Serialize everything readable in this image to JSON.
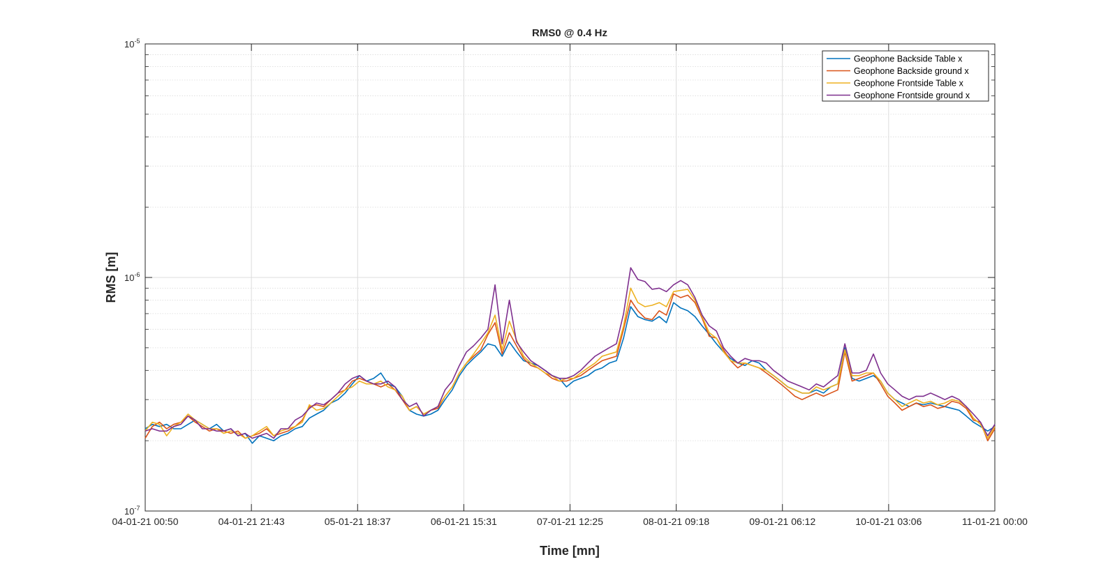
{
  "chart_data": {
    "type": "line",
    "title": "RMS0 @ 0.4 Hz",
    "xlabel": "Time [mn]",
    "ylabel": "RMS [m]",
    "yscale": "log",
    "ylim": [
      1e-07,
      1e-05
    ],
    "xlim": [
      "04-01-21 00:50",
      "11-01-21 00:00"
    ],
    "x_ticks": [
      "04-01-21 00:50",
      "04-01-21 21:43",
      "05-01-21 18:37",
      "06-01-21 15:31",
      "07-01-21 12:25",
      "08-01-21 09:18",
      "09-01-21 06:12",
      "10-01-21 03:06",
      "11-01-21 00:00"
    ],
    "y_ticks": [
      {
        "base": "10",
        "exp": "-7"
      },
      {
        "base": "10",
        "exp": "-6"
      },
      {
        "base": "10",
        "exp": "-5"
      }
    ],
    "grid": true,
    "minor_grid": true,
    "legend_position": "top-right",
    "series": [
      {
        "name": "Geophone Backside Table x",
        "color": "#0072BD",
        "values": [
          2.25e-07,
          2.35e-07,
          2.3e-07,
          2.35e-07,
          2.25e-07,
          2.25e-07,
          2.35e-07,
          2.45e-07,
          2.35e-07,
          2.25e-07,
          2.35e-07,
          2.2e-07,
          2.25e-07,
          2.1e-07,
          2.15e-07,
          1.95e-07,
          2.1e-07,
          2.05e-07,
          2e-07,
          2.1e-07,
          2.15e-07,
          2.25e-07,
          2.3e-07,
          2.5e-07,
          2.6e-07,
          2.7e-07,
          2.9e-07,
          3e-07,
          3.2e-07,
          3.5e-07,
          3.8e-07,
          3.6e-07,
          3.7e-07,
          3.9e-07,
          3.5e-07,
          3.4e-07,
          3.1e-07,
          2.7e-07,
          2.6e-07,
          2.55e-07,
          2.6e-07,
          2.7e-07,
          3e-07,
          3.3e-07,
          3.8e-07,
          4.2e-07,
          4.5e-07,
          4.8e-07,
          5.2e-07,
          5.1e-07,
          4.6e-07,
          5.3e-07,
          4.8e-07,
          4.4e-07,
          4.3e-07,
          4.2e-07,
          4e-07,
          3.8e-07,
          3.7e-07,
          3.4e-07,
          3.6e-07,
          3.7e-07,
          3.8e-07,
          4e-07,
          4.1e-07,
          4.3e-07,
          4.4e-07,
          5.5e-07,
          7.5e-07,
          6.8e-07,
          6.6e-07,
          6.5e-07,
          6.8e-07,
          6.4e-07,
          7.8e-07,
          7.4e-07,
          7.2e-07,
          6.8e-07,
          6.2e-07,
          5.7e-07,
          5.2e-07,
          4.8e-07,
          4.5e-07,
          4.3e-07,
          4.2e-07,
          4.4e-07,
          4.3e-07,
          4e-07,
          3.8e-07,
          3.6e-07,
          3.4e-07,
          3.3e-07,
          3.2e-07,
          3.2e-07,
          3.3e-07,
          3.2e-07,
          3.4e-07,
          3.5e-07,
          5e-07,
          3.7e-07,
          3.6e-07,
          3.7e-07,
          3.8e-07,
          3.6e-07,
          3.2e-07,
          3e-07,
          2.9e-07,
          2.8e-07,
          2.9e-07,
          2.85e-07,
          2.9e-07,
          2.85e-07,
          2.8e-07,
          2.75e-07,
          2.7e-07,
          2.55e-07,
          2.4e-07,
          2.3e-07,
          2.2e-07,
          2.3e-07
        ]
      },
      {
        "name": "Geophone Backside ground x",
        "color": "#D95319",
        "values": [
          2.05e-07,
          2.3e-07,
          2.4e-07,
          2.25e-07,
          2.35e-07,
          2.4e-07,
          2.55e-07,
          2.4e-07,
          2.3e-07,
          2.2e-07,
          2.25e-07,
          2.2e-07,
          2.15e-07,
          2.2e-07,
          2.05e-07,
          2.1e-07,
          2.15e-07,
          2.25e-07,
          2.1e-07,
          2.15e-07,
          2.2e-07,
          2.3e-07,
          2.45e-07,
          2.8e-07,
          2.85e-07,
          2.8e-07,
          3e-07,
          3.2e-07,
          3.3e-07,
          3.6e-07,
          3.7e-07,
          3.6e-07,
          3.5e-07,
          3.4e-07,
          3.5e-07,
          3.3e-07,
          3e-07,
          2.7e-07,
          2.8e-07,
          2.6e-07,
          2.7e-07,
          2.75e-07,
          3.1e-07,
          3.4e-07,
          3.9e-07,
          4.3e-07,
          4.6e-07,
          4.9e-07,
          5.7e-07,
          6.4e-07,
          4.7e-07,
          5.8e-07,
          5.1e-07,
          4.5e-07,
          4.2e-07,
          4.1e-07,
          3.9e-07,
          3.7e-07,
          3.6e-07,
          3.6e-07,
          3.7e-07,
          3.8e-07,
          4e-07,
          4.2e-07,
          4.4e-07,
          4.5e-07,
          4.6e-07,
          6e-07,
          8e-07,
          7.2e-07,
          6.7e-07,
          6.6e-07,
          7.2e-07,
          6.9e-07,
          8.5e-07,
          8.2e-07,
          8.4e-07,
          7.8e-07,
          6.7e-07,
          5.6e-07,
          5.5e-07,
          4.9e-07,
          4.4e-07,
          4.1e-07,
          4.3e-07,
          4.2e-07,
          4.1e-07,
          3.9e-07,
          3.7e-07,
          3.5e-07,
          3.3e-07,
          3.1e-07,
          3e-07,
          3.1e-07,
          3.2e-07,
          3.1e-07,
          3.2e-07,
          3.3e-07,
          4.8e-07,
          3.6e-07,
          3.7e-07,
          3.8e-07,
          3.9e-07,
          3.5e-07,
          3.1e-07,
          2.9e-07,
          2.7e-07,
          2.8e-07,
          2.9e-07,
          2.8e-07,
          2.85e-07,
          2.75e-07,
          2.8e-07,
          2.95e-07,
          2.9e-07,
          2.75e-07,
          2.45e-07,
          2.4e-07,
          2e-07,
          2.25e-07
        ]
      },
      {
        "name": "Geophone Frontside Table x",
        "color": "#EDB120",
        "values": [
          2.2e-07,
          2.4e-07,
          2.35e-07,
          2.1e-07,
          2.3e-07,
          2.4e-07,
          2.6e-07,
          2.45e-07,
          2.35e-07,
          2.25e-07,
          2.25e-07,
          2.15e-07,
          2.2e-07,
          2.15e-07,
          2.05e-07,
          2.1e-07,
          2.2e-07,
          2.3e-07,
          2.1e-07,
          2.2e-07,
          2.25e-07,
          2.3e-07,
          2.4e-07,
          2.85e-07,
          2.7e-07,
          2.75e-07,
          2.9e-07,
          3.1e-07,
          3.3e-07,
          3.4e-07,
          3.6e-07,
          3.5e-07,
          3.5e-07,
          3.6e-07,
          3.4e-07,
          3.3e-07,
          3.1e-07,
          2.7e-07,
          2.8e-07,
          2.6e-07,
          2.7e-07,
          2.8e-07,
          3.1e-07,
          3.4e-07,
          3.9e-07,
          4.3e-07,
          4.7e-07,
          5.2e-07,
          5.8e-07,
          6.9e-07,
          4.9e-07,
          6.5e-07,
          5.4e-07,
          4.6e-07,
          4.3e-07,
          4.1e-07,
          3.9e-07,
          3.8e-07,
          3.6e-07,
          3.7e-07,
          3.7e-07,
          3.9e-07,
          4.1e-07,
          4.3e-07,
          4.6e-07,
          4.7e-07,
          4.8e-07,
          6.2e-07,
          9e-07,
          7.8e-07,
          7.5e-07,
          7.6e-07,
          7.8e-07,
          7.5e-07,
          8.7e-07,
          8.8e-07,
          8.9e-07,
          8e-07,
          6.8e-07,
          5.8e-07,
          5.5e-07,
          4.8e-07,
          4.4e-07,
          4.3e-07,
          4.3e-07,
          4.2e-07,
          4.1e-07,
          4e-07,
          3.8e-07,
          3.6e-07,
          3.4e-07,
          3.3e-07,
          3.2e-07,
          3.2e-07,
          3.4e-07,
          3.3e-07,
          3.4e-07,
          3.5e-07,
          4.9e-07,
          3.8e-07,
          3.8e-07,
          3.9e-07,
          3.9e-07,
          3.6e-07,
          3.2e-07,
          3e-07,
          2.8e-07,
          2.9e-07,
          3e-07,
          2.9e-07,
          2.95e-07,
          2.85e-07,
          2.9e-07,
          3e-07,
          2.95e-07,
          2.8e-07,
          2.5e-07,
          2.35e-07,
          2.05e-07,
          2.3e-07
        ]
      },
      {
        "name": "Geophone Frontside ground x",
        "color": "#7E2F8E",
        "values": [
          2.2e-07,
          2.25e-07,
          2.2e-07,
          2.2e-07,
          2.3e-07,
          2.35e-07,
          2.55e-07,
          2.45e-07,
          2.25e-07,
          2.25e-07,
          2.2e-07,
          2.2e-07,
          2.25e-07,
          2.1e-07,
          2.15e-07,
          2.05e-07,
          2.1e-07,
          2.15e-07,
          2.05e-07,
          2.25e-07,
          2.25e-07,
          2.45e-07,
          2.55e-07,
          2.75e-07,
          2.9e-07,
          2.85e-07,
          3e-07,
          3.2e-07,
          3.5e-07,
          3.7e-07,
          3.8e-07,
          3.6e-07,
          3.5e-07,
          3.5e-07,
          3.6e-07,
          3.4e-07,
          3e-07,
          2.8e-07,
          2.9e-07,
          2.55e-07,
          2.7e-07,
          2.8e-07,
          3.3e-07,
          3.6e-07,
          4.2e-07,
          4.8e-07,
          5.1e-07,
          5.5e-07,
          6e-07,
          9.3e-07,
          5.2e-07,
          8e-07,
          5.3e-07,
          4.8e-07,
          4.4e-07,
          4.2e-07,
          4e-07,
          3.8e-07,
          3.7e-07,
          3.7e-07,
          3.8e-07,
          4e-07,
          4.3e-07,
          4.6e-07,
          4.8e-07,
          5e-07,
          5.2e-07,
          7e-07,
          1.1e-06,
          9.8e-07,
          9.6e-07,
          8.9e-07,
          9e-07,
          8.7e-07,
          9.3e-07,
          9.7e-07,
          9.3e-07,
          8.2e-07,
          6.9e-07,
          6.2e-07,
          5.9e-07,
          5e-07,
          4.6e-07,
          4.3e-07,
          4.5e-07,
          4.4e-07,
          4.4e-07,
          4.3e-07,
          4e-07,
          3.8e-07,
          3.6e-07,
          3.5e-07,
          3.4e-07,
          3.3e-07,
          3.5e-07,
          3.4e-07,
          3.6e-07,
          3.8e-07,
          5.2e-07,
          3.9e-07,
          3.9e-07,
          4e-07,
          4.7e-07,
          3.9e-07,
          3.5e-07,
          3.3e-07,
          3.1e-07,
          3e-07,
          3.1e-07,
          3.1e-07,
          3.2e-07,
          3.1e-07,
          3e-07,
          3.1e-07,
          3e-07,
          2.8e-07,
          2.6e-07,
          2.4e-07,
          2.1e-07,
          2.35e-07
        ]
      }
    ]
  }
}
